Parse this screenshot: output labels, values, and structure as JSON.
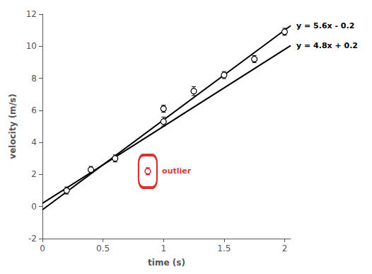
{
  "chart_data": {
    "type": "scatter",
    "xlabel": "time (s)",
    "ylabel": "velocity (m/s)",
    "xlim": [
      0,
      2.05
    ],
    "ylim": [
      -2,
      12
    ],
    "xticks": [
      0,
      0.5,
      1,
      1.5,
      2
    ],
    "yticks": [
      -2,
      0,
      2,
      4,
      6,
      8,
      10,
      12
    ],
    "grid": false,
    "series": [
      {
        "type": "scatter",
        "marker": "circle",
        "color": "#000000",
        "x": [
          0.2,
          0.4,
          0.6,
          1.0,
          1.0,
          1.25,
          1.5,
          1.75,
          2.0
        ],
        "values": [
          1.0,
          2.3,
          3.0,
          5.3,
          6.1,
          7.2,
          8.2,
          9.2,
          10.9
        ],
        "yerr": [
          0.22,
          0.2,
          0.22,
          0.28,
          0.22,
          0.28,
          0.22,
          0.22,
          0.22
        ]
      },
      {
        "type": "scatter",
        "name": "outlier",
        "marker": "circle",
        "color": "#cc0000",
        "x": [
          0.87
        ],
        "values": [
          2.2
        ],
        "yerr": [
          0.22
        ]
      },
      {
        "type": "line",
        "name": "y = 5.6x - 0.2",
        "color": "#000000",
        "x": [
          0,
          2.05
        ],
        "values": [
          -0.2,
          11.28
        ]
      },
      {
        "type": "line",
        "name": "y = 4.8x + 0.2",
        "color": "#000000",
        "x": [
          0,
          2.05
        ],
        "values": [
          0.2,
          10.04
        ]
      }
    ]
  }
}
